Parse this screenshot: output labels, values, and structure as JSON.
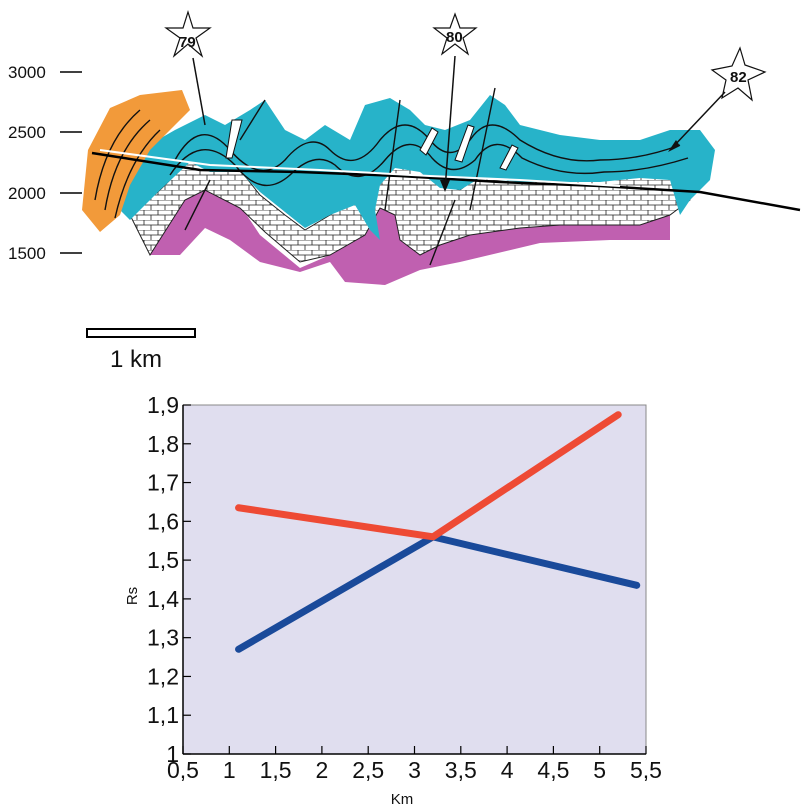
{
  "section": {
    "elevation_labels": [
      "3000",
      "2500",
      "2000",
      "1500"
    ],
    "wells": [
      "79",
      "80",
      "82"
    ],
    "colors": {
      "orange": "#f29a3a",
      "cyan": "#27b3c9",
      "magenta": "#c060b0"
    }
  },
  "scale": {
    "label": "1 km"
  },
  "chart_data": {
    "type": "line",
    "xlabel": "Km",
    "ylabel": "Rs",
    "xlim": [
      0.5,
      5.5
    ],
    "ylim": [
      1.0,
      1.9
    ],
    "x_ticks": [
      "0,5",
      "1",
      "1,5",
      "2",
      "2,5",
      "3",
      "3,5",
      "4",
      "4,5",
      "5",
      "5,5"
    ],
    "y_ticks": [
      "1",
      "1,1",
      "1,2",
      "1,3",
      "1,4",
      "1,5",
      "1,6",
      "1,7",
      "1,8",
      "1,9"
    ],
    "series": [
      {
        "color": "#1a4a9a",
        "points": [
          [
            1.1,
            1.27
          ],
          [
            3.2,
            1.56
          ],
          [
            5.4,
            1.435
          ]
        ]
      },
      {
        "color": "#ee4a34",
        "points": [
          [
            1.1,
            1.635
          ],
          [
            3.2,
            1.56
          ],
          [
            5.2,
            1.875
          ]
        ]
      }
    ],
    "plot_background": "#e0deef",
    "grid": false
  }
}
